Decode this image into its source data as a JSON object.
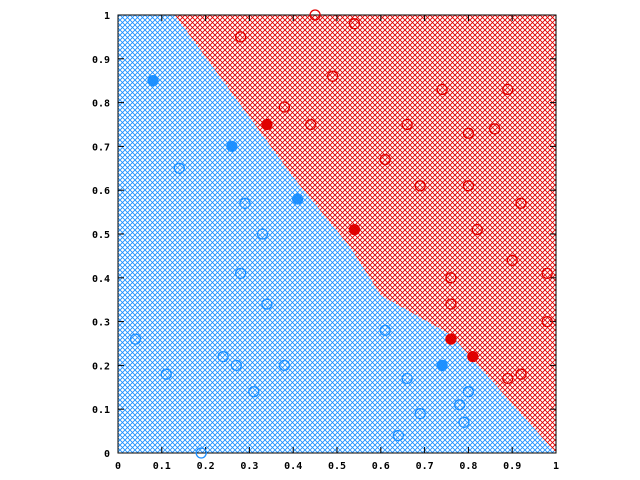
{
  "chart_data": {
    "type": "scatter",
    "title": "",
    "xlabel": "",
    "ylabel": "",
    "xlim": [
      0,
      1
    ],
    "ylim": [
      0,
      1
    ],
    "grid": false,
    "x_ticks": [
      "0",
      "0.1",
      "0.2",
      "0.3",
      "0.4",
      "0.5",
      "0.6",
      "0.7",
      "0.8",
      "0.9",
      "1"
    ],
    "y_ticks": [
      "0",
      "0.1",
      "0.2",
      "0.3",
      "0.4",
      "0.5",
      "0.6",
      "0.7",
      "0.8",
      "0.9",
      "1"
    ],
    "regions": [
      {
        "label": "blue",
        "color": "#1e90ff",
        "pattern": "crosshatch",
        "polygon": [
          [
            0,
            0
          ],
          [
            0,
            1
          ],
          [
            0.13,
            1
          ],
          [
            0.4,
            0.63
          ],
          [
            0.53,
            0.47
          ],
          [
            0.6,
            0.36
          ],
          [
            0.76,
            0.27
          ],
          [
            1.0,
            0.0
          ]
        ]
      },
      {
        "label": "red",
        "color": "#e00000",
        "pattern": "crosshatch",
        "polygon": [
          [
            0.13,
            1
          ],
          [
            1,
            1
          ],
          [
            1,
            0
          ],
          [
            0.76,
            0.27
          ],
          [
            0.6,
            0.36
          ],
          [
            0.53,
            0.47
          ],
          [
            0.4,
            0.63
          ]
        ]
      }
    ],
    "series": [
      {
        "color": "#1e90ff",
        "fill": false,
        "points": [
          [
            0.04,
            0.26
          ],
          [
            0.11,
            0.18
          ],
          [
            0.14,
            0.65
          ],
          [
            0.19,
            0.0
          ],
          [
            0.24,
            0.22
          ],
          [
            0.27,
            0.2
          ],
          [
            0.28,
            0.41
          ],
          [
            0.29,
            0.57
          ],
          [
            0.31,
            0.14
          ],
          [
            0.33,
            0.5
          ],
          [
            0.34,
            0.34
          ],
          [
            0.38,
            0.2
          ],
          [
            0.61,
            0.28
          ],
          [
            0.64,
            0.04
          ],
          [
            0.66,
            0.17
          ],
          [
            0.69,
            0.09
          ],
          [
            0.78,
            0.11
          ],
          [
            0.79,
            0.07
          ],
          [
            0.8,
            0.14
          ]
        ]
      },
      {
        "color": "#1e90ff",
        "fill": true,
        "points": [
          [
            0.08,
            0.85
          ],
          [
            0.26,
            0.7
          ],
          [
            0.41,
            0.58
          ],
          [
            0.74,
            0.2
          ]
        ]
      },
      {
        "color": "#e00000",
        "fill": false,
        "points": [
          [
            0.28,
            0.95
          ],
          [
            0.38,
            0.79
          ],
          [
            0.44,
            0.75
          ],
          [
            0.45,
            1.0
          ],
          [
            0.49,
            0.86
          ],
          [
            0.54,
            0.98
          ],
          [
            0.61,
            0.67
          ],
          [
            0.66,
            0.75
          ],
          [
            0.69,
            0.61
          ],
          [
            0.74,
            0.83
          ],
          [
            0.76,
            0.4
          ],
          [
            0.76,
            0.34
          ],
          [
            0.8,
            0.73
          ],
          [
            0.8,
            0.61
          ],
          [
            0.82,
            0.51
          ],
          [
            0.86,
            0.74
          ],
          [
            0.89,
            0.83
          ],
          [
            0.9,
            0.44
          ],
          [
            0.89,
            0.17
          ],
          [
            0.92,
            0.57
          ],
          [
            0.92,
            0.18
          ],
          [
            0.98,
            0.3
          ],
          [
            0.98,
            0.41
          ]
        ]
      },
      {
        "color": "#e00000",
        "fill": true,
        "points": [
          [
            0.34,
            0.75
          ],
          [
            0.54,
            0.51
          ],
          [
            0.76,
            0.26
          ],
          [
            0.81,
            0.22
          ]
        ]
      }
    ]
  }
}
